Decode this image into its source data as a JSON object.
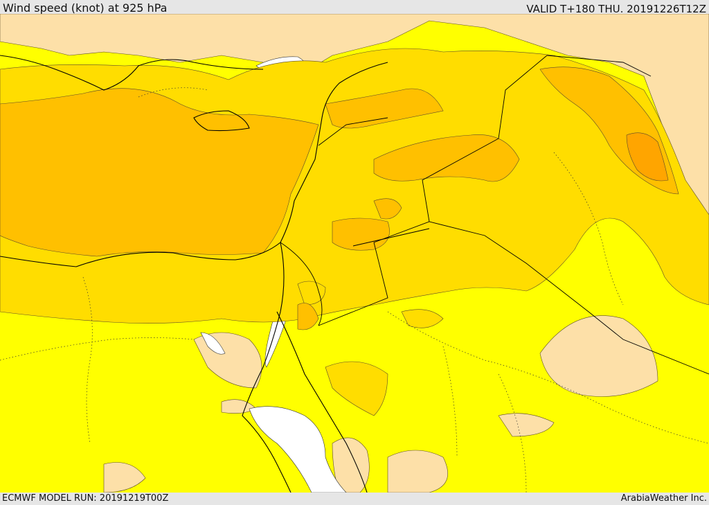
{
  "header": {
    "title": "Wind speed (knot) at 925 hPa",
    "valid": "VALID T+180 THU. 20191226T12Z"
  },
  "footer": {
    "model_run": "ECMWF MODEL RUN: 20191219T00Z",
    "credit": "ArabiaWeather Inc."
  },
  "palette": {
    "very_light": "#fde0a8",
    "light": "#ffff00",
    "medium": "#ffdd00",
    "strong": "#ffc000",
    "stronger": "#ffa500",
    "land_white": "#ffffff",
    "border": "#000000"
  }
}
